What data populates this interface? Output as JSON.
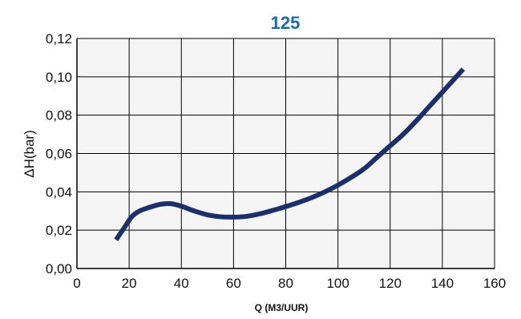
{
  "chart_data": {
    "type": "line",
    "title": "125",
    "xlabel": "Q (M3/UUR)",
    "ylabel": "ΔH(bar)",
    "xlim": [
      0,
      160
    ],
    "ylim": [
      0,
      0.12
    ],
    "x_ticks": [
      "0",
      "20",
      "40",
      "60",
      "80",
      "100",
      "120",
      "140",
      "160"
    ],
    "y_ticks": [
      "0,00",
      "0,02",
      "0,04",
      "0,06",
      "0,08",
      "0,10",
      "0,12"
    ],
    "grid": true,
    "series": [
      {
        "x": [
          15,
          18,
          21,
          24,
          28,
          32,
          36,
          40,
          45,
          50,
          55,
          60,
          65,
          70,
          75,
          80,
          85,
          90,
          95,
          100,
          105,
          110,
          115,
          120,
          125,
          130,
          135,
          140,
          145,
          148
        ],
        "y": [
          0.015,
          0.021,
          0.027,
          0.03,
          0.032,
          0.0335,
          0.0338,
          0.0325,
          0.03,
          0.028,
          0.027,
          0.0268,
          0.0272,
          0.0285,
          0.0303,
          0.0323,
          0.0345,
          0.037,
          0.04,
          0.0435,
          0.0475,
          0.052,
          0.058,
          0.064,
          0.07,
          0.077,
          0.0845,
          0.092,
          0.0995,
          0.104
        ],
        "color": "#1b2f6b"
      }
    ],
    "colors": {
      "title": "#1a6aad",
      "line": "#1b2f6b",
      "plot_bg": "#f5f5f5",
      "grid": "#000000"
    }
  }
}
